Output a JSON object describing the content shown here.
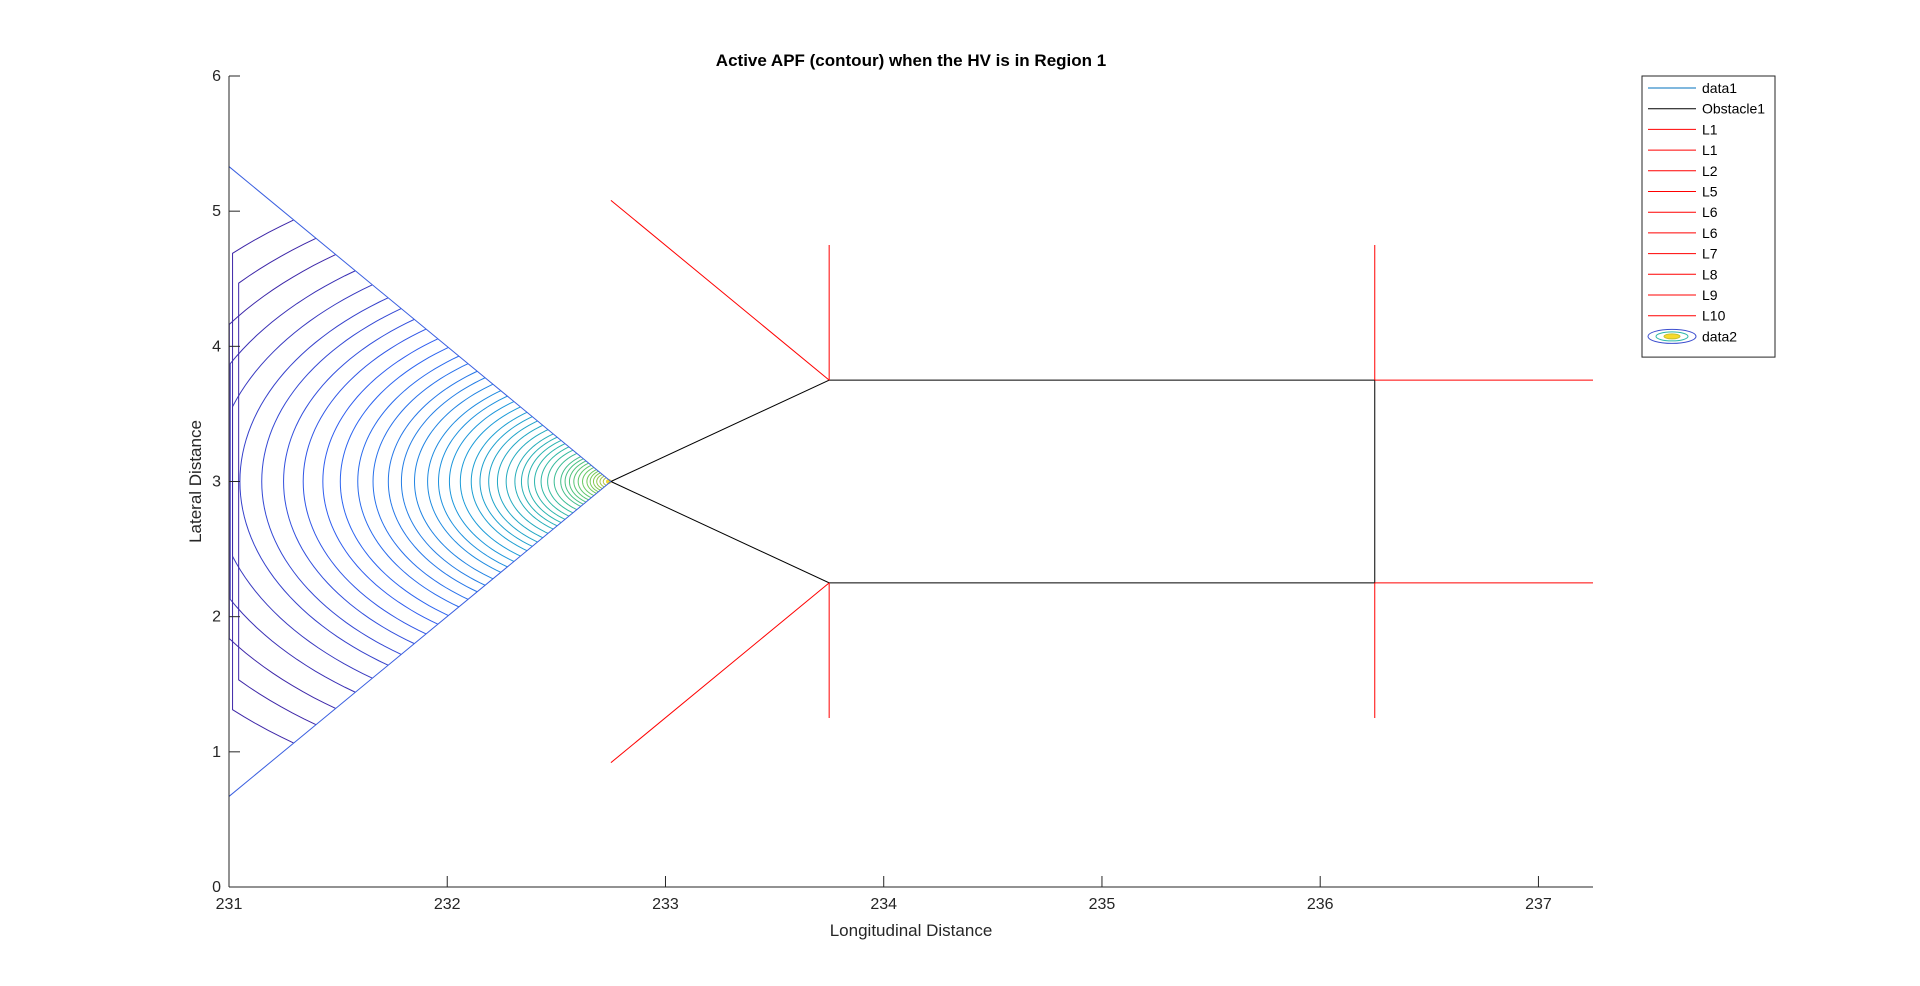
{
  "chart_data": {
    "type": "line",
    "title": "Active APF (contour) when the HV is in Region 1",
    "xlabel": "Longitudinal Distance",
    "ylabel": "Lateral Distance",
    "xlim": [
      231,
      237.25
    ],
    "ylim": [
      0,
      6
    ],
    "xticks": [
      231,
      232,
      233,
      234,
      235,
      236,
      237
    ],
    "yticks": [
      0,
      1,
      2,
      3,
      4,
      5,
      6
    ],
    "grid": false,
    "legend_position": "top-right (outside)",
    "series": [
      {
        "name": "data1",
        "color": "#0072BD",
        "x": [],
        "y": []
      },
      {
        "name": "Obstacle1",
        "color": "#000000",
        "segments": [
          [
            [
              232.75,
              3
            ],
            [
              233.75,
              3.75
            ],
            [
              236.25,
              3.75
            ],
            [
              236.25,
              2.25
            ],
            [
              233.75,
              2.25
            ],
            [
              232.75,
              3
            ]
          ]
        ]
      },
      {
        "name": "L1",
        "color": "#FF0000",
        "segments": [
          [
            [
              232.75,
              5.08
            ],
            [
              233.75,
              3.75
            ]
          ]
        ]
      },
      {
        "name": "L1",
        "color": "#FF0000",
        "segments": [
          [
            [
              232.75,
              0.92
            ],
            [
              233.75,
              2.25
            ]
          ]
        ]
      },
      {
        "name": "L2",
        "color": "#FF0000",
        "segments": [
          [
            [
              233.75,
              4.75
            ],
            [
              233.75,
              3.75
            ]
          ]
        ]
      },
      {
        "name": "L5",
        "color": "#FF0000",
        "segments": [
          [
            [
              233.75,
              2.25
            ],
            [
              233.75,
              1.25
            ]
          ]
        ]
      },
      {
        "name": "L6",
        "color": "#FF0000",
        "segments": [
          [
            [
              236.25,
              4.75
            ],
            [
              236.25,
              3.75
            ]
          ]
        ]
      },
      {
        "name": "L6",
        "color": "#FF0000",
        "segments": [
          [
            [
              236.25,
              2.25
            ],
            [
              236.25,
              1.25
            ]
          ]
        ]
      },
      {
        "name": "L7",
        "color": "#FF0000",
        "segments": [
          [
            [
              236.25,
              3.75
            ],
            [
              237.25,
              3.75
            ]
          ]
        ]
      },
      {
        "name": "L8",
        "color": "#FF0000",
        "segments": [
          [
            [
              236.25,
              2.25
            ],
            [
              237.25,
              2.25
            ]
          ]
        ]
      },
      {
        "name": "L9",
        "color": "#FF0000",
        "segments": [
          [
            [
              231.0,
              5.33
            ],
            [
              232.75,
              3.0
            ]
          ]
        ]
      },
      {
        "name": "L10",
        "color": "#FF0000",
        "segments": [
          [
            [
              231.0,
              0.67
            ],
            [
              232.75,
              3.0
            ]
          ]
        ]
      },
      {
        "name": "data2",
        "type": "contour",
        "apex": [
          232.75,
          3.0
        ],
        "wedge_upper_edge": [
          [
            231.0,
            5.33
          ],
          [
            232.75,
            3.0
          ]
        ],
        "wedge_lower_edge": [
          [
            231.0,
            0.67
          ],
          [
            232.75,
            3.0
          ]
        ],
        "level_radii": [
          0.02,
          0.035,
          0.05,
          0.065,
          0.08,
          0.095,
          0.11,
          0.13,
          0.15,
          0.17,
          0.19,
          0.21,
          0.23,
          0.26,
          0.29,
          0.32,
          0.35,
          0.38,
          0.41,
          0.44,
          0.48,
          0.52,
          0.56,
          0.6,
          0.64,
          0.69,
          0.74,
          0.79,
          0.84,
          0.9,
          0.96,
          1.02,
          1.09,
          1.16,
          1.24,
          1.32,
          1.41,
          1.5,
          1.6,
          1.7,
          1.82,
          1.95,
          2.1,
          2.25,
          2.42
        ],
        "colormap": [
          "#3d26a8",
          "#2e5ff2",
          "#1a9ada",
          "#2cb7a9",
          "#67c95d",
          "#c4c22f",
          "#f9d92b"
        ]
      }
    ],
    "legend": [
      {
        "label": "data1",
        "color": "#0072BD",
        "kind": "line"
      },
      {
        "label": "Obstacle1",
        "color": "#000000",
        "kind": "line"
      },
      {
        "label": "L1",
        "color": "#FF0000",
        "kind": "line"
      },
      {
        "label": "L1",
        "color": "#FF0000",
        "kind": "line"
      },
      {
        "label": "L2",
        "color": "#FF0000",
        "kind": "line"
      },
      {
        "label": "L5",
        "color": "#FF0000",
        "kind": "line"
      },
      {
        "label": "L6",
        "color": "#FF0000",
        "kind": "line"
      },
      {
        "label": "L6",
        "color": "#FF0000",
        "kind": "line"
      },
      {
        "label": "L7",
        "color": "#FF0000",
        "kind": "line"
      },
      {
        "label": "L8",
        "color": "#FF0000",
        "kind": "line"
      },
      {
        "label": "L9",
        "color": "#FF0000",
        "kind": "line"
      },
      {
        "label": "L10",
        "color": "#FF0000",
        "kind": "line"
      },
      {
        "label": "data2",
        "color": "#3d6fe0",
        "kind": "contour"
      }
    ]
  }
}
